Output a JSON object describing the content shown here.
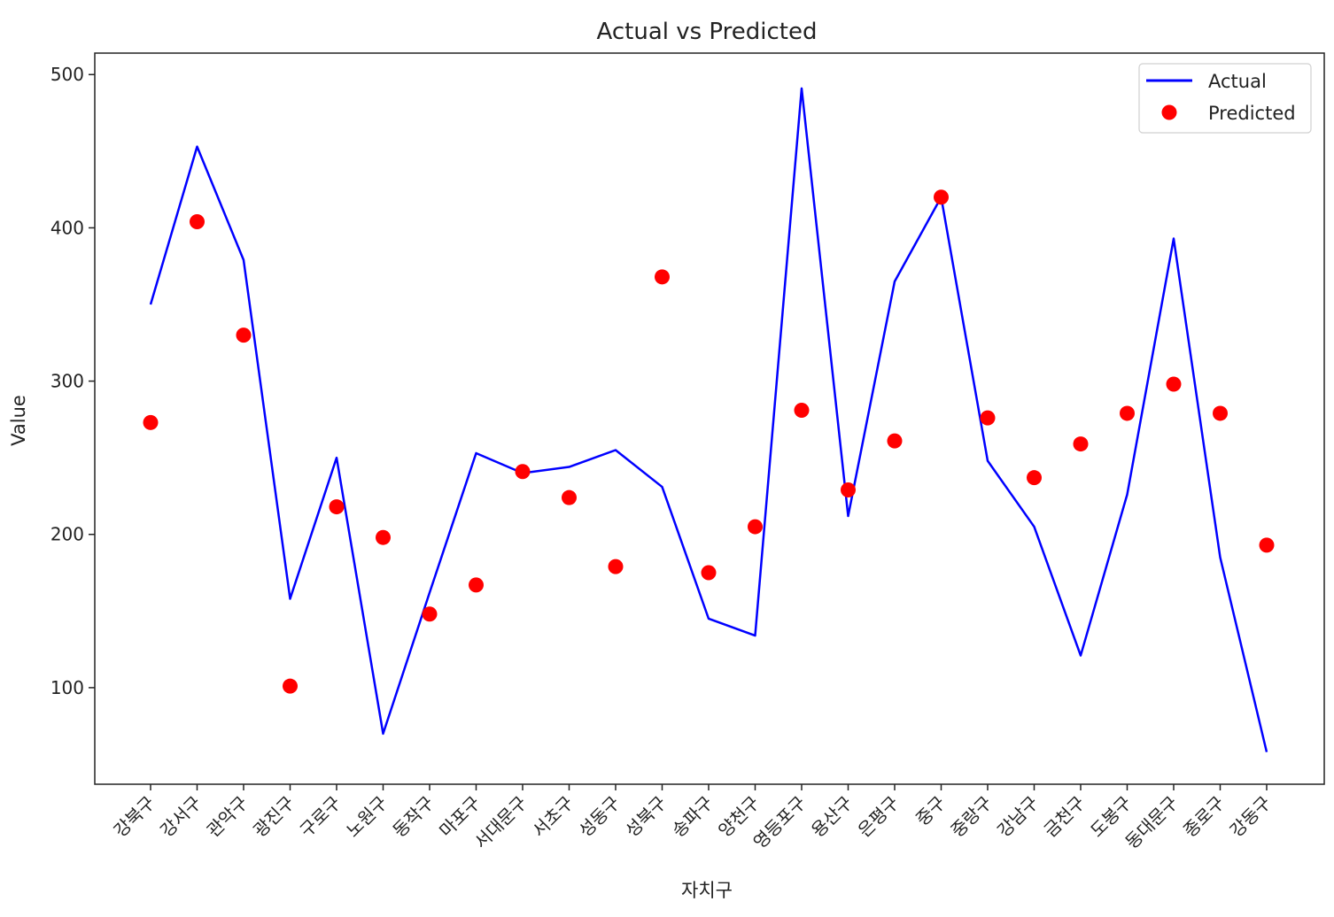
{
  "chart_data": {
    "type": "line",
    "title": "Actual vs Predicted",
    "xlabel": "자치구",
    "ylabel": "Value",
    "categories": [
      "강북구",
      "강서구",
      "관악구",
      "광진구",
      "구로구",
      "노원구",
      "동작구",
      "마포구",
      "서대문구",
      "서초구",
      "성동구",
      "성북구",
      "송파구",
      "양천구",
      "영등포구",
      "용산구",
      "은평구",
      "중구",
      "중랑구",
      "강남구",
      "금천구",
      "도봉구",
      "동대문구",
      "종로구",
      "강동구"
    ],
    "ylim": [
      37,
      514
    ],
    "yticks": [
      100,
      200,
      300,
      400,
      500
    ],
    "grid": false,
    "legend_position": "top-right",
    "series": [
      {
        "name": "Actual",
        "style": "line",
        "color": "#0000ff",
        "values": [
          350,
          453,
          379,
          158,
          250,
          70,
          162,
          253,
          240,
          244,
          255,
          231,
          145,
          134,
          491,
          212,
          365,
          420,
          248,
          205,
          121,
          226,
          393,
          185,
          58
        ]
      },
      {
        "name": "Predicted",
        "style": "marker",
        "color": "#ff0000",
        "values": [
          273,
          404,
          330,
          101,
          218,
          198,
          148,
          167,
          241,
          224,
          179,
          368,
          175,
          205,
          281,
          229,
          261,
          420,
          276,
          237,
          259,
          279,
          298,
          279,
          193
        ]
      }
    ]
  }
}
